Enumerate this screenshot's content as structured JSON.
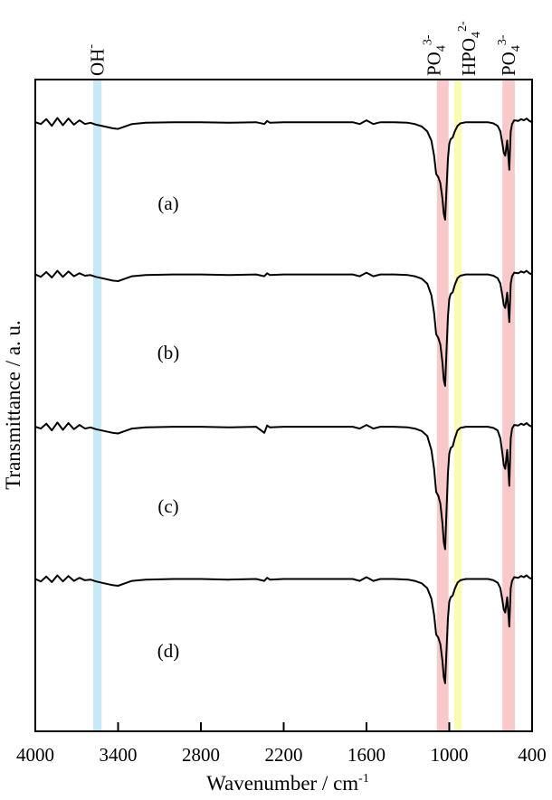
{
  "chart_data": {
    "type": "line",
    "title": "",
    "xlabel": {
      "base": "Wavenumber / cm",
      "sup": "-1"
    },
    "ylabel": "Transmittance / a. u.",
    "xlim": [
      4000,
      400
    ],
    "x_reversed": true,
    "ylim": [
      0,
      107
    ],
    "grid": false,
    "x_ticks": [
      4000,
      3400,
      2800,
      2200,
      1600,
      1000,
      400
    ],
    "x_tick_labels": [
      "4000",
      "3400",
      "2800",
      "2200",
      "1600",
      "1000",
      "400"
    ],
    "line_color": "#000000",
    "bands": [
      {
        "range": [
          3580,
          3520
        ],
        "color": "#c6e9f7",
        "label": {
          "base": "OH",
          "sub": "",
          "sup": "-"
        }
      },
      {
        "range": [
          1090,
          1005
        ],
        "color": "#f9c9c9",
        "label": {
          "base": "PO",
          "sub": "4",
          "sup": "3-"
        }
      },
      {
        "range": [
          965,
          910
        ],
        "color": "#fafab0",
        "label": {
          "base": "HPO",
          "sub": "4",
          "sup": "2-"
        }
      },
      {
        "range": [
          615,
          525
        ],
        "color": "#f9c9c9",
        "label": {
          "base": "PO",
          "sub": "4",
          "sup": "3-"
        }
      }
    ],
    "x": [
      4000,
      3960,
      3920,
      3880,
      3840,
      3800,
      3760,
      3720,
      3680,
      3640,
      3600,
      3560,
      3500,
      3440,
      3400,
      3350,
      3300,
      3200,
      3000,
      2800,
      2600,
      2400,
      2340,
      2320,
      2300,
      2200,
      2000,
      1800,
      1700,
      1650,
      1600,
      1550,
      1500,
      1400,
      1300,
      1250,
      1200,
      1160,
      1130,
      1110,
      1095,
      1080,
      1065,
      1050,
      1040,
      1030,
      1020,
      1010,
      1000,
      990,
      975,
      960,
      940,
      920,
      880,
      800,
      720,
      680,
      650,
      630,
      615,
      605,
      595,
      580,
      565,
      555,
      545,
      530,
      500,
      480,
      460,
      440,
      420,
      400
    ],
    "series": [
      {
        "label": "(a)",
        "values": [
          100,
          99.7,
          100.5,
          99.4,
          100.7,
          99.5,
          100.6,
          99.6,
          100.3,
          99.7,
          99.9,
          99.6,
          99.3,
          99,
          98.9,
          99.3,
          99.7,
          99.9,
          100,
          100,
          99.9,
          100,
          99.7,
          100.2,
          99.9,
          100,
          100,
          100,
          100,
          99.7,
          100.3,
          99.7,
          100,
          100,
          99.9,
          99.7,
          99.3,
          98.5,
          97,
          94.5,
          91.5,
          91,
          90,
          87.5,
          85,
          84,
          89,
          94,
          96.5,
          97.2,
          97.5,
          98.5,
          99.4,
          99.8,
          100,
          100,
          100,
          99.8,
          99.4,
          98.5,
          96.5,
          95,
          94.5,
          97,
          92.2,
          98.5,
          99.7,
          100.3,
          100.2,
          100.5,
          100.3,
          100.6,
          100.2,
          100
        ]
      },
      {
        "label": "(b)",
        "values": [
          75,
          74.6,
          75.4,
          74.5,
          75.6,
          74.6,
          75.5,
          74.7,
          75.2,
          74.8,
          74.9,
          74.6,
          74.3,
          74,
          73.9,
          74.3,
          74.7,
          74.9,
          75,
          75,
          74.9,
          75,
          74.7,
          75.2,
          74.9,
          75,
          75,
          75,
          75,
          74.7,
          75.3,
          74.7,
          75,
          75,
          74.9,
          74.7,
          74.3,
          73.5,
          71.6,
          68.7,
          65.2,
          64.6,
          63.5,
          60.6,
          57.7,
          56.7,
          62.4,
          68.1,
          71,
          71.8,
          72.1,
          73.3,
          74.4,
          74.8,
          75,
          75,
          75,
          74.8,
          74.4,
          73.5,
          71.5,
          70,
          69.5,
          72,
          67.2,
          73.5,
          74.7,
          75.3,
          75.2,
          75.5,
          75.3,
          75.6,
          75.2,
          75
        ]
      },
      {
        "label": "(c)",
        "values": [
          50,
          49.7,
          50.5,
          49.4,
          50.7,
          49.5,
          50.6,
          49.6,
          50.3,
          49.7,
          49.9,
          49.6,
          49.3,
          49,
          48.9,
          49.3,
          49.7,
          49.9,
          50,
          50,
          49.9,
          50,
          49,
          50.2,
          49.9,
          50,
          50,
          50,
          50,
          49.7,
          50.3,
          49.7,
          50,
          50,
          49.9,
          49.7,
          49.3,
          48.5,
          46.2,
          43.1,
          39.3,
          38.7,
          37.4,
          34.2,
          31.1,
          29.9,
          36.1,
          42.4,
          45.6,
          46.5,
          46.8,
          48.1,
          49.4,
          49.8,
          50,
          50,
          50,
          49.8,
          49.4,
          48.1,
          45.6,
          43.7,
          43.1,
          46.2,
          40.3,
          48.1,
          49.7,
          50.3,
          50.2,
          50.5,
          50.3,
          50.6,
          50.2,
          50
        ]
      },
      {
        "label": "(d)",
        "values": [
          25,
          24.6,
          25.4,
          24.5,
          25.6,
          24.6,
          25.5,
          24.7,
          25.2,
          24.8,
          24.9,
          24.6,
          24.3,
          24,
          23.9,
          24.3,
          24.7,
          24.9,
          25,
          25,
          24.9,
          25,
          24.7,
          25.2,
          24.9,
          25,
          25,
          25,
          25,
          24.7,
          25.3,
          24.7,
          25,
          25,
          24.9,
          24.7,
          24.3,
          23.5,
          21.8,
          19.1,
          15.9,
          15.4,
          14.3,
          11.6,
          8.9,
          7.9,
          13.2,
          18.6,
          21.3,
          22,
          22.3,
          23.4,
          24.4,
          24.8,
          25,
          25,
          25,
          24.8,
          24.4,
          23.5,
          21.5,
          20,
          19.5,
          22,
          17.2,
          23.5,
          24.7,
          25.3,
          25.2,
          25.5,
          25.3,
          25.6,
          25.2,
          25
        ]
      }
    ]
  }
}
